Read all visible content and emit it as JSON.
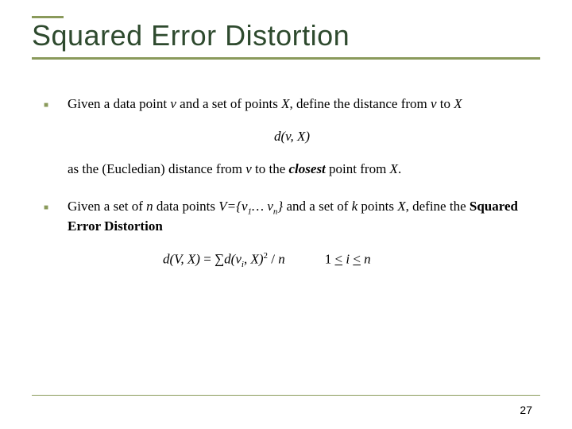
{
  "title": "Squared Error Distortion",
  "bullet1": {
    "pre": "Given a data point ",
    "v": "v",
    "mid1": " and a set of points ",
    "X": "X",
    "mid2": ", define the distance from ",
    "v2": "v",
    "mid3": " to ",
    "X2": "X"
  },
  "formula1": {
    "d": "d",
    "open": "(",
    "v": "v",
    "comma": ", ",
    "X": "X",
    "close": ")"
  },
  "line2": {
    "pre": "as the (Eucledian) distance from ",
    "v": "v",
    "mid": " to the ",
    "closest": "closest",
    "post": " point from ",
    "X": "X",
    "dot": "."
  },
  "bullet2": {
    "pre": "Given a set of ",
    "n": "n",
    "mid1": " data points ",
    "V": "V",
    "eq": "={",
    "v1": "v",
    "sub1": "1",
    "dots": "… ",
    "vn": "v",
    "subn": "n",
    "close": "}",
    "mid2": " and a set of ",
    "k": "k",
    "mid3": " points ",
    "X": "X",
    "mid4": ", define the ",
    "sed": "Squared Error Distortion"
  },
  "formula2": {
    "lhs_d": "d",
    "lhs_open": "(",
    "lhs_V": "V",
    "lhs_comma": ", ",
    "lhs_X": "X",
    "lhs_close": ")",
    "eq": " = ",
    "sum": "∑",
    "rhs_d": "d",
    "rhs_open": "(",
    "rhs_v": "v",
    "rhs_isub": "i",
    "rhs_comma": ", ",
    "rhs_X": "X",
    "rhs_close": ")",
    "sq": "2",
    "slash": "  / ",
    "n": "n",
    "range_pre": "1 ",
    "le1": "<",
    "range_i": " i ",
    "le2": "<",
    "range_n": " n"
  },
  "page": "27",
  "colors": {
    "accent": "#8a9a5b",
    "title": "#2e4a2e",
    "text": "#000000",
    "bg": "#ffffff"
  }
}
